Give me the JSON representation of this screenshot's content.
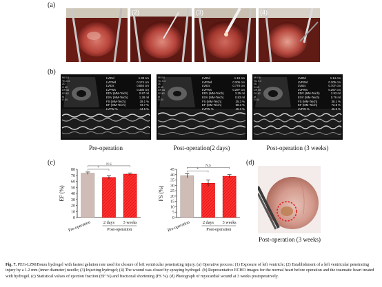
{
  "panels": {
    "a": "(a)",
    "b": "(b)",
    "c": "(c)",
    "d": "(d)"
  },
  "photos": [
    {
      "num": "",
      "name": "photo-exposure"
    },
    {
      "num": "(2)",
      "name": "photo-injury"
    },
    {
      "num": "(3)",
      "name": "photo-injecting"
    },
    {
      "num": "(4)",
      "name": "photo-spraying"
    }
  ],
  "echo": [
    {
      "caption": "Pre-operation",
      "side": [
        "MI 0.6",
        "TIs 0.4",
        "2D",
        "G 60",
        "DR 66",
        "FR 62",
        "M",
        "G 54"
      ],
      "params": [
        {
          "label": "LVIDd",
          "value": "1.38 cm"
        },
        {
          "label": "LVPWd",
          "value": "0.174 cm"
        },
        {
          "label": "LVIDs",
          "value": "0.840 cm"
        },
        {
          "label": "LVPWs",
          "value": "0.330 cm"
        },
        {
          "label": "EDV (MM-Teich)",
          "value": "0.97 ml"
        },
        {
          "label": "ESV (MM-Teich)",
          "value": "1.28 ml"
        },
        {
          "label": "FS (MM-Teich)",
          "value": "39.1 %"
        },
        {
          "label": "EF (MM-Teich)",
          "value": "73.7 %"
        },
        {
          "label": "LVPW %",
          "value": "44.5 %"
        }
      ]
    },
    {
      "caption": "Post-operation(2 days)",
      "side": [
        "MI 0.6",
        "TIs 0.4",
        "2D",
        "G 60",
        "DR 66",
        "FR 62",
        "M",
        "G 54"
      ],
      "params": [
        {
          "label": "LVIDd",
          "value": "1.19 cm"
        },
        {
          "label": "LVPWd",
          "value": "0.205 cm"
        },
        {
          "label": "LVIDs",
          "value": "0.770 cm"
        },
        {
          "label": "LVPWs",
          "value": "0.297 cm"
        },
        {
          "label": "EDV (MM-Teich)",
          "value": "3.35 ml"
        },
        {
          "label": "ESV (MM-Teich)",
          "value": "0.83 ml"
        },
        {
          "label": "FS (MM-Teich)",
          "value": "35.3 %"
        },
        {
          "label": "EF (MM-Teich)",
          "value": "68.3 %"
        },
        {
          "label": "LVPW %",
          "value": "45.3 %"
        }
      ]
    },
    {
      "caption": "Post-operation (3 weeks)",
      "side": [
        "MI 0.6",
        "TIs 0.4",
        "2D",
        "G 60",
        "DR 66",
        "FR 62",
        "M",
        "G 54"
      ],
      "params": [
        {
          "label": "LVIDd",
          "value": "1.14 cm"
        },
        {
          "label": "LVPWd",
          "value": "0.205 cm"
        },
        {
          "label": "LVIDs",
          "value": "0.707 cm"
        },
        {
          "label": "LVPWs",
          "value": "0.267 cm"
        },
        {
          "label": "EDV (MM-Teich)",
          "value": "2.93 ml"
        },
        {
          "label": "ESV (MM-Teich)",
          "value": "0.76 ml"
        },
        {
          "label": "FS (MM-Teich)",
          "value": "38.1 %"
        },
        {
          "label": "EF (MM-Teich)",
          "value": "72.8 %"
        },
        {
          "label": "LVPW %",
          "value": "46.6 %"
        }
      ]
    }
  ],
  "chart_data": [
    {
      "type": "bar",
      "ylabel": "EF (%)",
      "ylim": [
        0,
        80
      ],
      "yticks": [
        "0",
        "10",
        "20",
        "30",
        "40",
        "50",
        "60",
        "70",
        "80"
      ],
      "categories": [
        "Pre-operation",
        "2 days",
        "3 weeks"
      ],
      "group_label": "Post-operation",
      "values": [
        73.5,
        66.5,
        72
      ],
      "errors": [
        2,
        2.5,
        2
      ],
      "colors": [
        "#cfbcb6",
        "#ff2b2b",
        "#ff2b2b"
      ],
      "hatched": [
        false,
        true,
        true
      ],
      "significance": [
        {
          "from": 0,
          "to": 1,
          "label": "*"
        },
        {
          "from": 0,
          "to": 2,
          "label": "N.S"
        }
      ]
    },
    {
      "type": "bar",
      "ylabel": "FS (%)",
      "ylim": [
        0,
        45
      ],
      "yticks": [
        "0",
        "5",
        "10",
        "15",
        "20",
        "25",
        "30",
        "35",
        "40",
        "45"
      ],
      "categories": [
        "Pre-operation",
        "2 days",
        "3 weeks"
      ],
      "group_label": "Post-operation",
      "values": [
        39,
        32,
        38.5
      ],
      "errors": [
        2,
        3,
        1.5
      ],
      "colors": [
        "#cfbcb6",
        "#ff2b2b",
        "#ff2b2b"
      ],
      "hatched": [
        false,
        true,
        true
      ],
      "significance": [
        {
          "from": 0,
          "to": 1,
          "label": "*"
        },
        {
          "from": 0,
          "to": 2,
          "label": "N.S"
        }
      ]
    }
  ],
  "photo_d": {
    "caption": "Post-operation (3 weeks)"
  },
  "figure_caption": {
    "lead": "Fig. 7.",
    "text": " PEG-LZM/Borax hydrogel with fastest gelation rate used for closure of left ventricular penetrating injury. (a) Operative process: (1) Exposure of left ventricle; (2) Establishment of a left ventricular penetrating injury by a 1.2 mm (inner diameter) needle; (3) Injecting hydrogel; (4) The wound was closed by spraying hydrogel. (b) Representative ECHO images for the normal heart before operation and the traumatic heart treated with hydrogel. (c) Statistical values of ejection fraction (EF %) and fractional shortening (FS %). (d) Photograph of myocardial wound at 3 weeks postoperatively."
  }
}
